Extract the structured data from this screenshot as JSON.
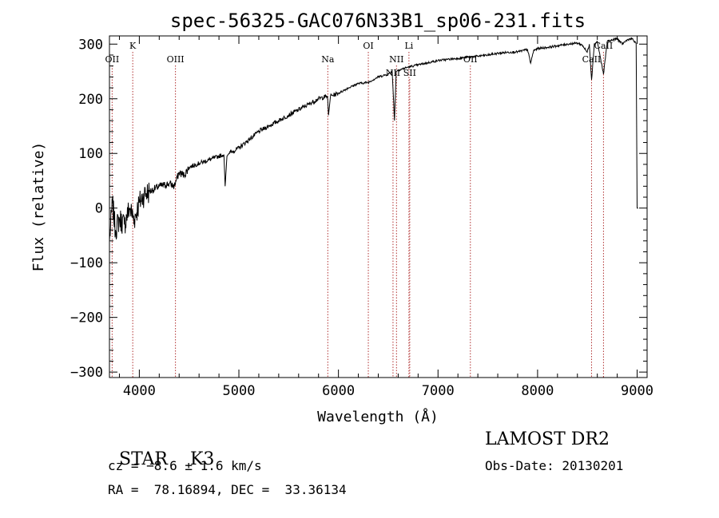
{
  "chart_data": {
    "type": "line",
    "title": "spec-56325-GAC076N33B1_sp06-231.fits",
    "xlabel": "Wavelength (Å)",
    "ylabel": "Flux (relative)",
    "xlim": [
      3700,
      9100
    ],
    "ylim": [
      -310,
      315
    ],
    "xticks": [
      4000,
      5000,
      6000,
      7000,
      8000,
      9000
    ],
    "yticks": [
      -300,
      -200,
      -100,
      0,
      100,
      200,
      300
    ],
    "grid": false,
    "series": [
      {
        "x": [
          3700,
          3730,
          3760,
          3800,
          3850,
          3900,
          3950,
          4000,
          4050,
          4100,
          4150,
          4200,
          4250,
          4300,
          4350,
          4400,
          4450,
          4500,
          4600,
          4700,
          4800,
          4850,
          4862,
          4880,
          4900,
          5000,
          5100,
          5200,
          5300,
          5400,
          5500,
          5600,
          5700,
          5800,
          5890,
          5900,
          5920,
          6000,
          6100,
          6200,
          6300,
          6400,
          6500,
          6540,
          6563,
          6580,
          6600,
          6700,
          6800,
          6900,
          7000,
          7100,
          7200,
          7300,
          7400,
          7500,
          7600,
          7700,
          7800,
          7900,
          7930,
          7960,
          8000,
          8100,
          8200,
          8300,
          8400,
          8450,
          8498,
          8520,
          8542,
          8570,
          8600,
          8662,
          8700,
          8800,
          8850,
          8900,
          8950,
          8990,
          9000,
          9010
        ],
        "y": [
          -60,
          10,
          -40,
          -20,
          -30,
          0,
          -20,
          10,
          25,
          30,
          35,
          40,
          42,
          45,
          40,
          65,
          60,
          75,
          82,
          88,
          95,
          98,
          40,
          95,
          100,
          110,
          125,
          140,
          150,
          160,
          170,
          180,
          190,
          200,
          205,
          170,
          205,
          210,
          220,
          228,
          230,
          240,
          245,
          250,
          160,
          250,
          252,
          258,
          262,
          266,
          270,
          272,
          274,
          276,
          278,
          280,
          283,
          285,
          286,
          290,
          265,
          288,
          292,
          294,
          297,
          300,
          302,
          298,
          285,
          300,
          235,
          300,
          305,
          245,
          305,
          310,
          300,
          308,
          310,
          300,
          0,
          0
        ]
      }
    ],
    "lines": [
      {
        "label": "K",
        "x": 3934,
        "row": 1
      },
      {
        "label": "OII",
        "x": 3727,
        "row": 2
      },
      {
        "label": "OIII",
        "x": 4363,
        "row": 2
      },
      {
        "label": "Na",
        "x": 5893,
        "row": 2
      },
      {
        "label": "OI",
        "x": 6300,
        "row": 1
      },
      {
        "label": "NII",
        "x": 6548,
        "row": 3
      },
      {
        "label": "NII",
        "x": 6583,
        "row": 2
      },
      {
        "label": "Li",
        "x": 6708,
        "row": 1
      },
      {
        "label": "SII",
        "x": 6716,
        "row": 3
      },
      {
        "label": "OII",
        "x": 7325,
        "row": 2
      },
      {
        "label": "CaII",
        "x": 8542,
        "row": 2
      },
      {
        "label": "CaII",
        "x": 8662,
        "row": 1
      }
    ]
  },
  "info": {
    "class": "STAR",
    "subclass": "K3",
    "survey": "LAMOST DR2",
    "cz": "cz = −8.6 ± 1.6 km/s",
    "obsdate": "Obs-Date: 20130201",
    "radec": "RA =  78.16894, DEC =  33.36134"
  }
}
